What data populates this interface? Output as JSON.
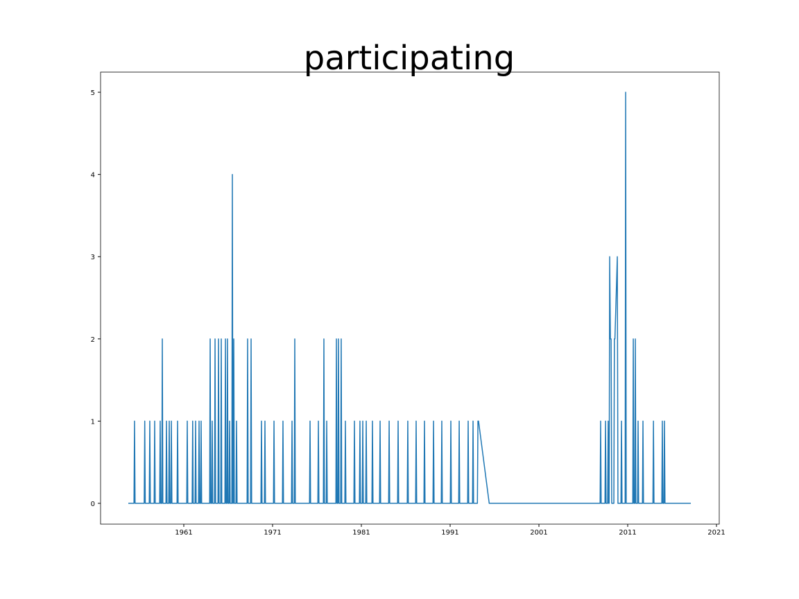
{
  "chart_data": {
    "type": "line",
    "title": "participating",
    "color": "#1f77b4",
    "x": [
      1954.75,
      1955.39,
      1955.45,
      1955.51,
      1956.54,
      1956.6,
      1956.66,
      1957.11,
      1957.17,
      1957.23,
      1957.66,
      1957.72,
      1957.78,
      1958.28,
      1958.34,
      1958.4,
      1958.52,
      1958.58,
      1958.64,
      1958.99,
      1959.05,
      1959.11,
      1959.3,
      1959.36,
      1959.42,
      1959.54,
      1959.6,
      1959.66,
      1960.24,
      1960.3,
      1960.36,
      1961.33,
      1961.39,
      1961.45,
      1961.94,
      1962,
      1962.06,
      1962.27,
      1962.33,
      1962.39,
      1962.66,
      1962.72,
      1962.78,
      1962.89,
      1962.95,
      1963.01,
      1963.91,
      1963.97,
      1964.03,
      1964.14,
      1964.2,
      1964.26,
      1964.46,
      1964.52,
      1964.58,
      1964.85,
      1964.91,
      1964.97,
      1965.16,
      1965.22,
      1965.28,
      1965.63,
      1965.69,
      1965.75,
      1965.86,
      1965.92,
      1965.98,
      1966.1,
      1966.16,
      1966.22,
      1966.41,
      1966.47,
      1966.53,
      1966.57,
      1966.63,
      1966.69,
      1966.88,
      1966.94,
      1967,
      1968.13,
      1968.19,
      1968.25,
      1968.52,
      1968.58,
      1968.64,
      1969.69,
      1969.75,
      1969.81,
      1970.08,
      1970.14,
      1970.2,
      1971.1,
      1971.16,
      1971.22,
      1972.11,
      1972.17,
      1972.23,
      1973.13,
      1973.19,
      1973.25,
      1973.44,
      1973.5,
      1973.56,
      1975.16,
      1975.22,
      1975.28,
      1976.1,
      1976.16,
      1976.22,
      1976.72,
      1976.78,
      1976.84,
      1977.04,
      1977.1,
      1977.16,
      1978.13,
      1978.19,
      1978.25,
      1978.36,
      1978.42,
      1978.48,
      1978.67,
      1978.73,
      1978.79,
      1979.14,
      1979.2,
      1979.26,
      1980.16,
      1980.22,
      1980.28,
      1980.78,
      1980.84,
      1980.9,
      1981.1,
      1981.16,
      1981.22,
      1981.49,
      1981.55,
      1981.61,
      1982.19,
      1982.25,
      1982.31,
      1983.05,
      1983.11,
      1983.17,
      1984.07,
      1984.13,
      1984.19,
      1985.08,
      1985.14,
      1985.2,
      1986.17,
      1986.23,
      1986.29,
      1987.11,
      1987.17,
      1987.23,
      1988.05,
      1988.11,
      1988.17,
      1989.07,
      1989.13,
      1989.19,
      1990,
      1990.06,
      1990.12,
      1991.02,
      1991.08,
      1991.14,
      1991.96,
      1992.02,
      1992.08,
      1992.97,
      1993.03,
      1993.09,
      1993.52,
      1993.58,
      1993.64,
      1994.07,
      1994.13,
      1994.2,
      1995.4,
      2007.89,
      2007.95,
      2008.01,
      2008.44,
      2008.5,
      2008.56,
      2008.74,
      2008.8,
      2008.86,
      2008.91,
      2008.97,
      2009.05,
      2009.13,
      2009.2,
      2009.44,
      2009.5,
      2009.56,
      2009.83,
      2009.9,
      2010.24,
      2010.3,
      2010.36,
      2010.71,
      2010.77,
      2010.83,
      2011.57,
      2011.63,
      2011.69,
      2011.8,
      2011.86,
      2011.92,
      2012.11,
      2012.17,
      2012.23,
      2012.66,
      2012.72,
      2012.78,
      2013.84,
      2013.9,
      2013.96,
      2014.84,
      2014.9,
      2014.96,
      2015.08,
      2015.14,
      2015.2,
      2018.11
    ],
    "values": [
      0,
      0,
      1,
      0,
      0,
      1,
      0,
      0,
      1,
      0,
      0,
      1,
      0,
      0,
      1,
      0,
      0,
      2,
      0,
      0,
      1,
      0,
      0,
      1,
      0,
      0,
      1,
      0,
      0,
      1,
      0,
      0,
      1,
      0,
      0,
      1,
      0,
      0,
      1,
      0,
      0,
      1,
      0,
      0,
      1,
      0,
      0,
      2,
      0,
      0,
      1,
      0,
      0,
      2,
      0,
      0,
      2,
      0,
      0,
      2,
      0,
      0,
      2,
      0,
      0,
      2,
      0,
      0,
      1,
      0,
      0,
      4,
      0,
      0,
      2,
      0,
      0,
      1,
      0,
      0,
      2,
      0,
      0,
      2,
      0,
      0,
      1,
      0,
      0,
      1,
      0,
      0,
      1,
      0,
      0,
      1,
      0,
      0,
      1,
      0,
      0,
      2,
      0,
      0,
      1,
      0,
      0,
      1,
      0,
      0,
      2,
      0,
      0,
      1,
      0,
      0,
      2,
      0,
      0,
      2,
      0,
      0,
      2,
      0,
      0,
      1,
      0,
      0,
      1,
      0,
      0,
      1,
      0,
      0,
      1,
      0,
      0,
      1,
      0,
      0,
      1,
      0,
      0,
      1,
      0,
      0,
      1,
      0,
      0,
      1,
      0,
      0,
      1,
      0,
      0,
      1,
      0,
      0,
      1,
      0,
      0,
      1,
      0,
      0,
      1,
      0,
      0,
      1,
      0,
      0,
      1,
      0,
      0,
      1,
      0,
      0,
      1,
      0,
      0,
      1,
      1,
      0,
      0,
      1,
      0,
      0,
      1,
      0,
      0,
      1,
      0,
      0,
      3,
      2,
      2,
      0,
      0,
      2,
      2,
      3,
      0,
      0,
      1,
      0,
      0,
      5,
      0,
      0,
      2,
      0,
      0,
      2,
      0,
      0,
      1,
      0,
      0,
      1,
      0,
      0,
      1,
      0,
      0,
      1,
      0,
      0,
      1,
      0,
      0
    ],
    "xlim": [
      1951.625,
      2021.31
    ],
    "ylim": [
      -0.253,
      5.245
    ],
    "xticks": [
      1961,
      1971,
      1981,
      1991,
      2001,
      2011,
      2021
    ],
    "yticks": [
      0,
      1,
      2,
      3,
      4,
      5
    ]
  }
}
